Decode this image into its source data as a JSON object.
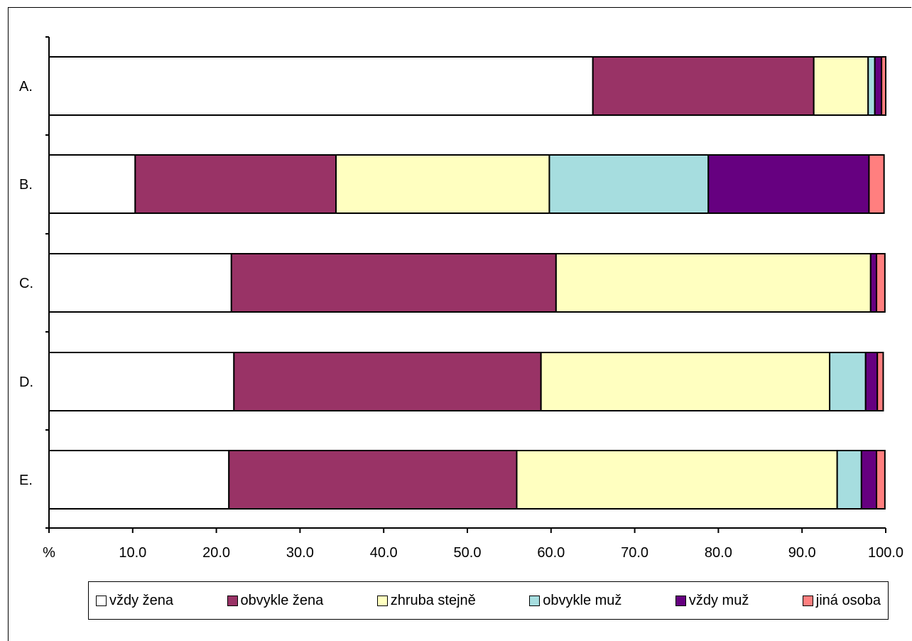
{
  "chart_data": {
    "type": "bar",
    "orientation": "horizontal",
    "stacked": true,
    "categories": [
      "A.",
      "B.",
      "C.",
      "D.",
      "E."
    ],
    "series": [
      {
        "name": "vždy žena",
        "color": "#FFFFFF",
        "values": [
          65.0,
          10.3,
          21.8,
          22.1,
          21.5
        ]
      },
      {
        "name": "obvykle žena",
        "color": "#993366",
        "values": [
          26.4,
          24.0,
          38.8,
          36.7,
          34.4
        ]
      },
      {
        "name": "zhruba stejně",
        "color": "#FFFFC0",
        "values": [
          6.5,
          25.5,
          37.6,
          34.5,
          38.3
        ]
      },
      {
        "name": "obvykle muž",
        "color": "#A6DDDF",
        "values": [
          0.8,
          19.0,
          0.0,
          4.3,
          2.9
        ]
      },
      {
        "name": "vždy muž",
        "color": "#660080",
        "values": [
          0.8,
          19.2,
          0.7,
          1.4,
          1.8
        ]
      },
      {
        "name": "jiná osoba",
        "color": "#FF7F7F",
        "values": [
          0.5,
          1.8,
          1.0,
          0.7,
          1.0
        ]
      }
    ],
    "x_tick_labels": [
      "%",
      "10.0",
      "20.0",
      "30.0",
      "40.0",
      "50.0",
      "60.0",
      "70.0",
      "80.0",
      "90.0",
      "100.0"
    ],
    "xlim": [
      0,
      100
    ],
    "grid": false,
    "legend_position": "bottom"
  }
}
